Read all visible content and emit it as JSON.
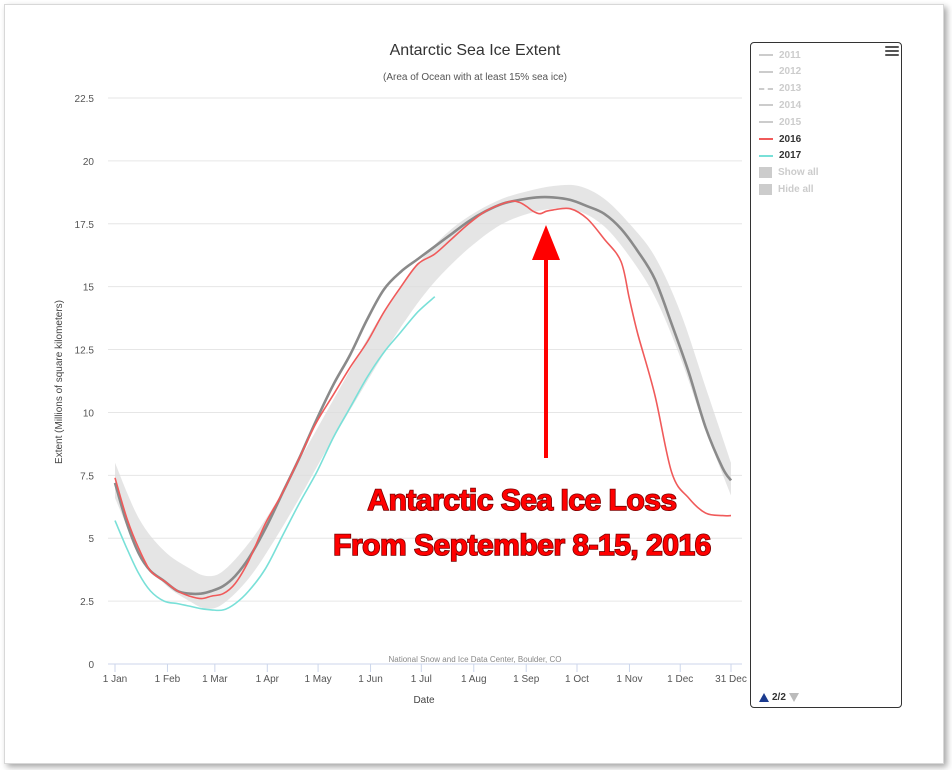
{
  "chart_data": {
    "type": "line",
    "title": "Antarctic Sea Ice Extent",
    "subtitle": "(Area of Ocean with at least 15% sea ice)",
    "xlabel": "Date",
    "ylabel": "Extent (Millions of square kilometers)",
    "credit": "National Snow and Ice Data Center, Boulder, CO",
    "xlim": [
      1,
      365
    ],
    "ylim": [
      0,
      22.5
    ],
    "yticks": [
      "0",
      "2.5",
      "5",
      "7.5",
      "10",
      "12.5",
      "15",
      "17.5",
      "20",
      "22.5"
    ],
    "xticks": [
      {
        "label": "1 Jan",
        "day": 1
      },
      {
        "label": "1 Feb",
        "day": 32
      },
      {
        "label": "1 Mar",
        "day": 60
      },
      {
        "label": "1 Apr",
        "day": 91
      },
      {
        "label": "1 May",
        "day": 121
      },
      {
        "label": "1 Jun",
        "day": 152
      },
      {
        "label": "1 Jul",
        "day": 182
      },
      {
        "label": "1 Aug",
        "day": 213
      },
      {
        "label": "1 Sep",
        "day": 244
      },
      {
        "label": "1 Oct",
        "day": 274
      },
      {
        "label": "1 Nov",
        "day": 305
      },
      {
        "label": "1 Dec",
        "day": 335
      },
      {
        "label": "31 Dec",
        "day": 365
      }
    ],
    "grid": true,
    "legend_placement": "right",
    "band": {
      "x": [
        1,
        15,
        30,
        45,
        55,
        65,
        80,
        95,
        110,
        125,
        140,
        155,
        170,
        185,
        200,
        215,
        230,
        245,
        260,
        275,
        290,
        305,
        320,
        335,
        350,
        365
      ],
      "upper": [
        8.0,
        5.8,
        4.5,
        3.8,
        3.5,
        3.7,
        4.8,
        6.3,
        8.1,
        9.9,
        11.7,
        13.5,
        15.0,
        16.3,
        17.3,
        18.0,
        18.5,
        18.8,
        19.0,
        19.0,
        18.5,
        17.5,
        16.2,
        14.0,
        11.0,
        8.0
      ],
      "lower": [
        6.6,
        4.5,
        3.2,
        2.5,
        2.2,
        2.4,
        3.4,
        4.9,
        6.6,
        8.4,
        10.1,
        11.8,
        13.4,
        14.8,
        15.9,
        16.8,
        17.5,
        17.9,
        18.1,
        18.0,
        17.4,
        16.2,
        14.6,
        12.2,
        9.3,
        6.7
      ]
    },
    "series": [
      {
        "name": "2011",
        "visible": false,
        "color": "#cccccc",
        "x": [],
        "y": []
      },
      {
        "name": "2012",
        "visible": false,
        "color": "#cccccc",
        "x": [],
        "y": []
      },
      {
        "name": "2013",
        "visible": false,
        "dashed": true,
        "color": "#cccccc",
        "x": [],
        "y": []
      },
      {
        "name": "2014",
        "visible": false,
        "color": "#cccccc",
        "x": [],
        "y": []
      },
      {
        "name": "2015",
        "visible": false,
        "color": "#cccccc",
        "x": [],
        "y": []
      },
      {
        "name": "2016",
        "visible": true,
        "color": "#f05a5a",
        "x": [
          1,
          8,
          15,
          22,
          30,
          38,
          45,
          52,
          58,
          65,
          72,
          80,
          90,
          100,
          110,
          120,
          130,
          140,
          150,
          160,
          170,
          180,
          190,
          200,
          210,
          220,
          230,
          236,
          240,
          244,
          248,
          252,
          256,
          260,
          270,
          280,
          290,
          300,
          305,
          310,
          320,
          330,
          340,
          350,
          360,
          365
        ],
        "y": [
          7.4,
          5.8,
          4.6,
          3.7,
          3.3,
          2.9,
          2.7,
          2.6,
          2.7,
          2.8,
          3.2,
          4.1,
          5.6,
          6.8,
          8.2,
          9.6,
          10.7,
          11.8,
          12.8,
          14.0,
          15.0,
          15.9,
          16.3,
          16.9,
          17.5,
          18.0,
          18.3,
          18.4,
          18.35,
          18.2,
          18.0,
          17.9,
          18.0,
          18.05,
          18.1,
          17.7,
          16.9,
          16.0,
          14.5,
          13.1,
          10.7,
          7.6,
          6.6,
          6.0,
          5.9,
          5.9
        ]
      },
      {
        "name": "2017",
        "visible": true,
        "color": "#79e0d8",
        "x": [
          1,
          8,
          15,
          22,
          30,
          38,
          45,
          52,
          58,
          65,
          72,
          80,
          90,
          100,
          110,
          120,
          130,
          140,
          150,
          160,
          170,
          180,
          190
        ],
        "y": [
          5.7,
          4.6,
          3.6,
          2.9,
          2.5,
          2.4,
          2.3,
          2.2,
          2.15,
          2.15,
          2.4,
          2.9,
          3.8,
          5.1,
          6.4,
          7.6,
          9.0,
          10.2,
          11.4,
          12.4,
          13.2,
          14.0,
          14.6
        ]
      }
    ],
    "median": {
      "x": [
        1,
        8,
        15,
        22,
        30,
        38,
        45,
        52,
        58,
        65,
        72,
        80,
        90,
        100,
        110,
        120,
        130,
        140,
        150,
        160,
        170,
        180,
        190,
        200,
        210,
        220,
        230,
        240,
        250,
        260,
        270,
        280,
        290,
        300,
        310,
        320,
        330,
        340,
        350,
        360,
        365
      ],
      "y": [
        7.2,
        5.6,
        4.4,
        3.7,
        3.3,
        2.9,
        2.8,
        2.8,
        2.9,
        3.1,
        3.5,
        4.2,
        5.4,
        6.8,
        8.2,
        9.7,
        11.1,
        12.3,
        13.7,
        14.9,
        15.6,
        16.1,
        16.6,
        17.1,
        17.6,
        18.0,
        18.3,
        18.45,
        18.55,
        18.55,
        18.45,
        18.2,
        17.9,
        17.3,
        16.4,
        15.3,
        13.5,
        11.6,
        9.4,
        7.8,
        7.3
      ]
    },
    "annotation": {
      "line1": "Antarctic Sea Ice Loss",
      "line2": "From September 8-15, 2016",
      "color": "#ff0000"
    }
  },
  "legend": {
    "items": [
      {
        "label": "2011",
        "active": false,
        "style": "line"
      },
      {
        "label": "2012",
        "active": false,
        "style": "line"
      },
      {
        "label": "2013",
        "active": false,
        "style": "dashed"
      },
      {
        "label": "2014",
        "active": false,
        "style": "line"
      },
      {
        "label": "2015",
        "active": false,
        "style": "line"
      },
      {
        "label": "2016",
        "active": true,
        "style": "line",
        "color": "#f05a5a"
      },
      {
        "label": "2017",
        "active": true,
        "style": "line",
        "color": "#79e0d8"
      },
      {
        "label": "Show all",
        "active": false,
        "style": "square"
      },
      {
        "label": "Hide all",
        "active": false,
        "style": "square"
      }
    ],
    "pager": "2/2"
  }
}
